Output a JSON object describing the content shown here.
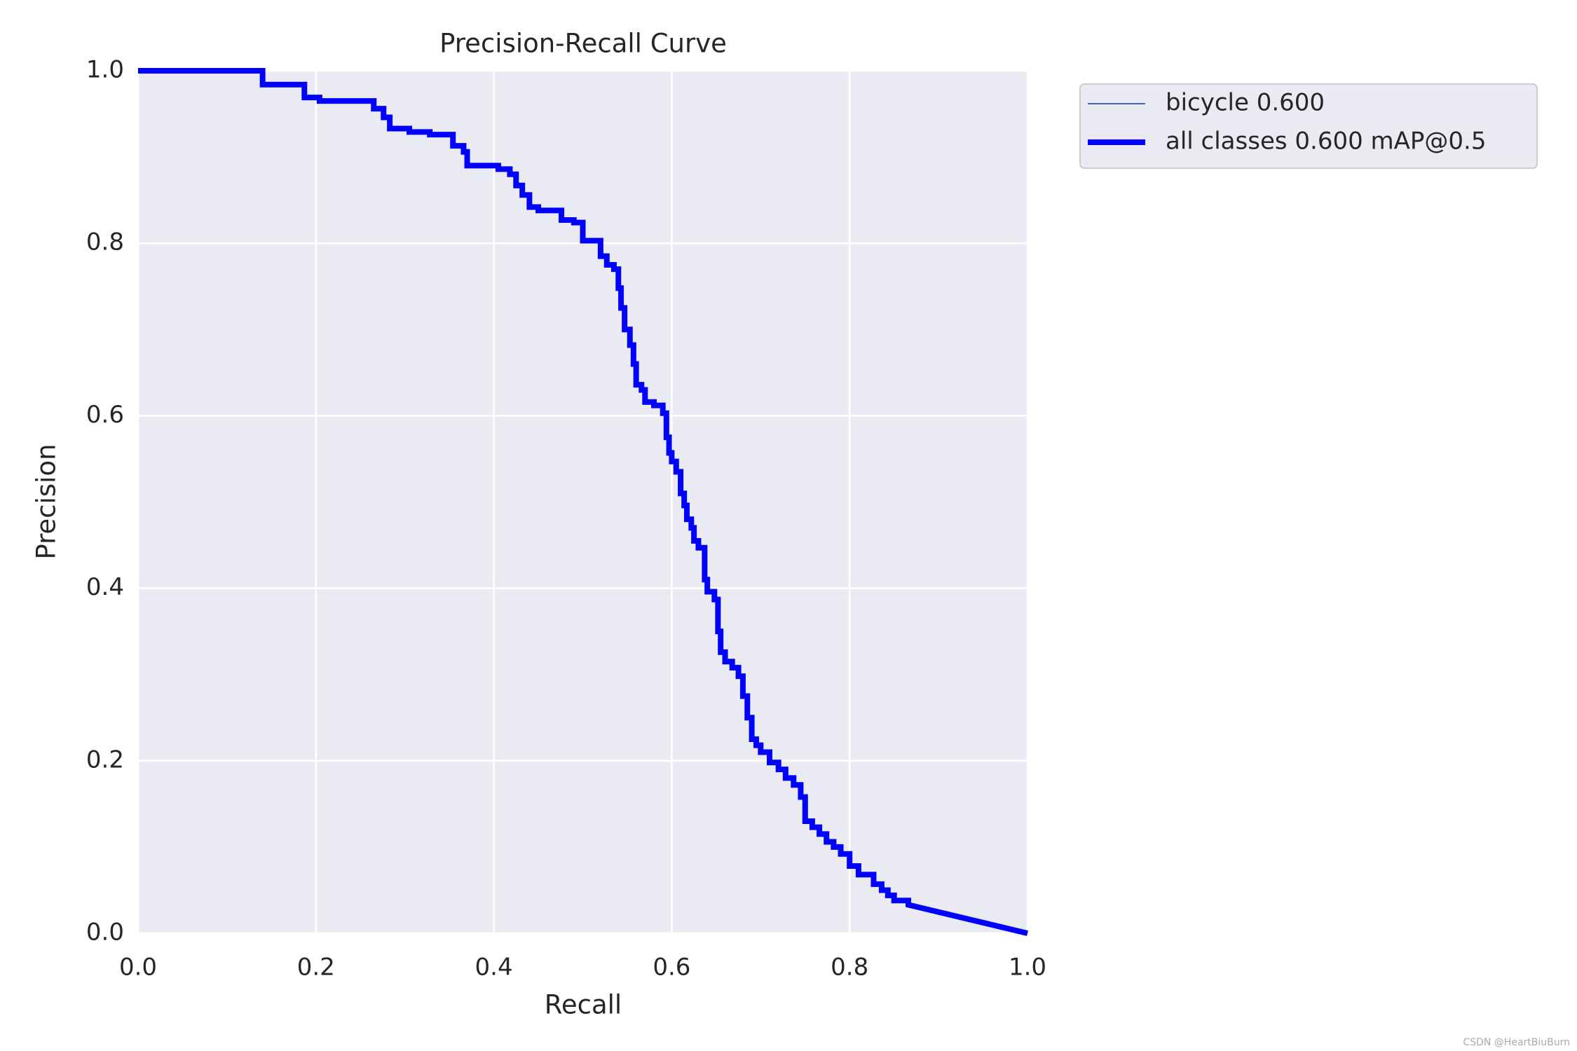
{
  "chart_data": {
    "type": "line",
    "title": "Precision-Recall Curve",
    "x_label": "Recall",
    "y_label": "Precision",
    "xlim": [
      0,
      1
    ],
    "ylim": [
      0,
      1
    ],
    "xticks": [
      {
        "value": 0,
        "label": "0.0"
      },
      0.2,
      0.4,
      0.6,
      0.8,
      {
        "value": 1,
        "label": "1.0"
      }
    ],
    "yticks": [
      {
        "value": 0,
        "label": "0.0"
      },
      0.2,
      0.4,
      0.6,
      0.8,
      {
        "value": 1,
        "label": "1.0"
      }
    ],
    "grid": true,
    "legend": "outside upper right",
    "background": "#eaeaf2",
    "x": [
      0,
      0.14,
      0.14,
      0.187,
      0.187,
      0.204,
      0.204,
      0.265,
      0.265,
      0.276,
      0.276,
      0.283,
      0.283,
      0.305,
      0.305,
      0.328,
      0.328,
      0.354,
      0.354,
      0.366,
      0.366,
      0.37,
      0.37,
      0.405,
      0.405,
      0.418,
      0.418,
      0.425,
      0.425,
      0.432,
      0.432,
      0.44,
      0.44,
      0.45,
      0.45,
      0.476,
      0.476,
      0.49,
      0.49,
      0.5,
      0.5,
      0.52,
      0.52,
      0.527,
      0.527,
      0.535,
      0.535,
      0.54,
      0.54,
      0.543,
      0.543,
      0.547,
      0.547,
      0.553,
      0.553,
      0.557,
      0.557,
      0.56,
      0.56,
      0.566,
      0.566,
      0.57,
      0.57,
      0.58,
      0.58,
      0.59,
      0.59,
      0.594,
      0.594,
      0.597,
      0.597,
      0.6,
      0.6,
      0.605,
      0.605,
      0.61,
      0.61,
      0.614,
      0.614,
      0.617,
      0.617,
      0.622,
      0.622,
      0.625,
      0.625,
      0.63,
      0.63,
      0.637,
      0.637,
      0.64,
      0.64,
      0.648,
      0.648,
      0.652,
      0.652,
      0.655,
      0.655,
      0.66,
      0.66,
      0.668,
      0.668,
      0.675,
      0.675,
      0.68,
      0.68,
      0.685,
      0.685,
      0.69,
      0.69,
      0.695,
      0.695,
      0.7,
      0.7,
      0.71,
      0.71,
      0.72,
      0.72,
      0.728,
      0.728,
      0.737,
      0.737,
      0.745,
      0.745,
      0.75,
      0.75,
      0.758,
      0.758,
      0.766,
      0.766,
      0.774,
      0.774,
      0.782,
      0.782,
      0.79,
      0.79,
      0.8,
      0.8,
      0.81,
      0.81,
      0.827,
      0.827,
      0.836,
      0.836,
      0.843,
      0.843,
      0.85,
      0.85,
      0.866,
      0.866,
      1.0
    ],
    "series": [
      {
        "name": "bicycle 0.600",
        "color": "#4062c0",
        "width": 2,
        "values": [
          1.0,
          1.0,
          0.984,
          0.984,
          0.969,
          0.969,
          0.965,
          0.965,
          0.956,
          0.956,
          0.946,
          0.946,
          0.933,
          0.933,
          0.929,
          0.929,
          0.926,
          0.926,
          0.913,
          0.913,
          0.906,
          0.906,
          0.89,
          0.89,
          0.886,
          0.886,
          0.88,
          0.88,
          0.867,
          0.867,
          0.856,
          0.856,
          0.842,
          0.842,
          0.838,
          0.838,
          0.827,
          0.827,
          0.824,
          0.824,
          0.803,
          0.803,
          0.785,
          0.785,
          0.775,
          0.775,
          0.77,
          0.77,
          0.748,
          0.748,
          0.725,
          0.725,
          0.7,
          0.7,
          0.682,
          0.682,
          0.66,
          0.66,
          0.636,
          0.636,
          0.63,
          0.63,
          0.616,
          0.616,
          0.612,
          0.612,
          0.603,
          0.603,
          0.575,
          0.575,
          0.557,
          0.557,
          0.547,
          0.547,
          0.535,
          0.535,
          0.51,
          0.51,
          0.496,
          0.496,
          0.48,
          0.48,
          0.47,
          0.47,
          0.455,
          0.455,
          0.447,
          0.447,
          0.41,
          0.41,
          0.396,
          0.396,
          0.387,
          0.387,
          0.35,
          0.35,
          0.326,
          0.326,
          0.315,
          0.315,
          0.308,
          0.308,
          0.298,
          0.298,
          0.275,
          0.275,
          0.25,
          0.25,
          0.225,
          0.225,
          0.218,
          0.218,
          0.21,
          0.21,
          0.198,
          0.198,
          0.19,
          0.19,
          0.18,
          0.18,
          0.172,
          0.172,
          0.158,
          0.158,
          0.13,
          0.13,
          0.123,
          0.123,
          0.115,
          0.115,
          0.106,
          0.106,
          0.1,
          0.1,
          0.092,
          0.092,
          0.078,
          0.078,
          0.068,
          0.068,
          0.057,
          0.057,
          0.05,
          0.05,
          0.044,
          0.044,
          0.038,
          0.038,
          0.033,
          0.0
        ]
      },
      {
        "name": "all classes 0.600 mAP@0.5",
        "color": "#0000ff",
        "width": 8,
        "values": [
          1.0,
          1.0,
          0.984,
          0.984,
          0.969,
          0.969,
          0.965,
          0.965,
          0.956,
          0.956,
          0.946,
          0.946,
          0.933,
          0.933,
          0.929,
          0.929,
          0.926,
          0.926,
          0.913,
          0.913,
          0.906,
          0.906,
          0.89,
          0.89,
          0.886,
          0.886,
          0.88,
          0.88,
          0.867,
          0.867,
          0.856,
          0.856,
          0.842,
          0.842,
          0.838,
          0.838,
          0.827,
          0.827,
          0.824,
          0.824,
          0.803,
          0.803,
          0.785,
          0.785,
          0.775,
          0.775,
          0.77,
          0.77,
          0.748,
          0.748,
          0.725,
          0.725,
          0.7,
          0.7,
          0.682,
          0.682,
          0.66,
          0.66,
          0.636,
          0.636,
          0.63,
          0.63,
          0.616,
          0.616,
          0.612,
          0.612,
          0.603,
          0.603,
          0.575,
          0.575,
          0.557,
          0.557,
          0.547,
          0.547,
          0.535,
          0.535,
          0.51,
          0.51,
          0.496,
          0.496,
          0.48,
          0.48,
          0.47,
          0.47,
          0.455,
          0.455,
          0.447,
          0.447,
          0.41,
          0.41,
          0.396,
          0.396,
          0.387,
          0.387,
          0.35,
          0.35,
          0.326,
          0.326,
          0.315,
          0.315,
          0.308,
          0.308,
          0.298,
          0.298,
          0.275,
          0.275,
          0.25,
          0.25,
          0.225,
          0.225,
          0.218,
          0.218,
          0.21,
          0.21,
          0.198,
          0.198,
          0.19,
          0.19,
          0.18,
          0.18,
          0.172,
          0.172,
          0.158,
          0.158,
          0.13,
          0.13,
          0.123,
          0.123,
          0.115,
          0.115,
          0.106,
          0.106,
          0.1,
          0.1,
          0.092,
          0.092,
          0.078,
          0.078,
          0.068,
          0.068,
          0.057,
          0.057,
          0.05,
          0.05,
          0.044,
          0.044,
          0.038,
          0.038,
          0.033,
          0.0
        ]
      }
    ],
    "watermark": "CSDN @HeartBiuBurn"
  }
}
